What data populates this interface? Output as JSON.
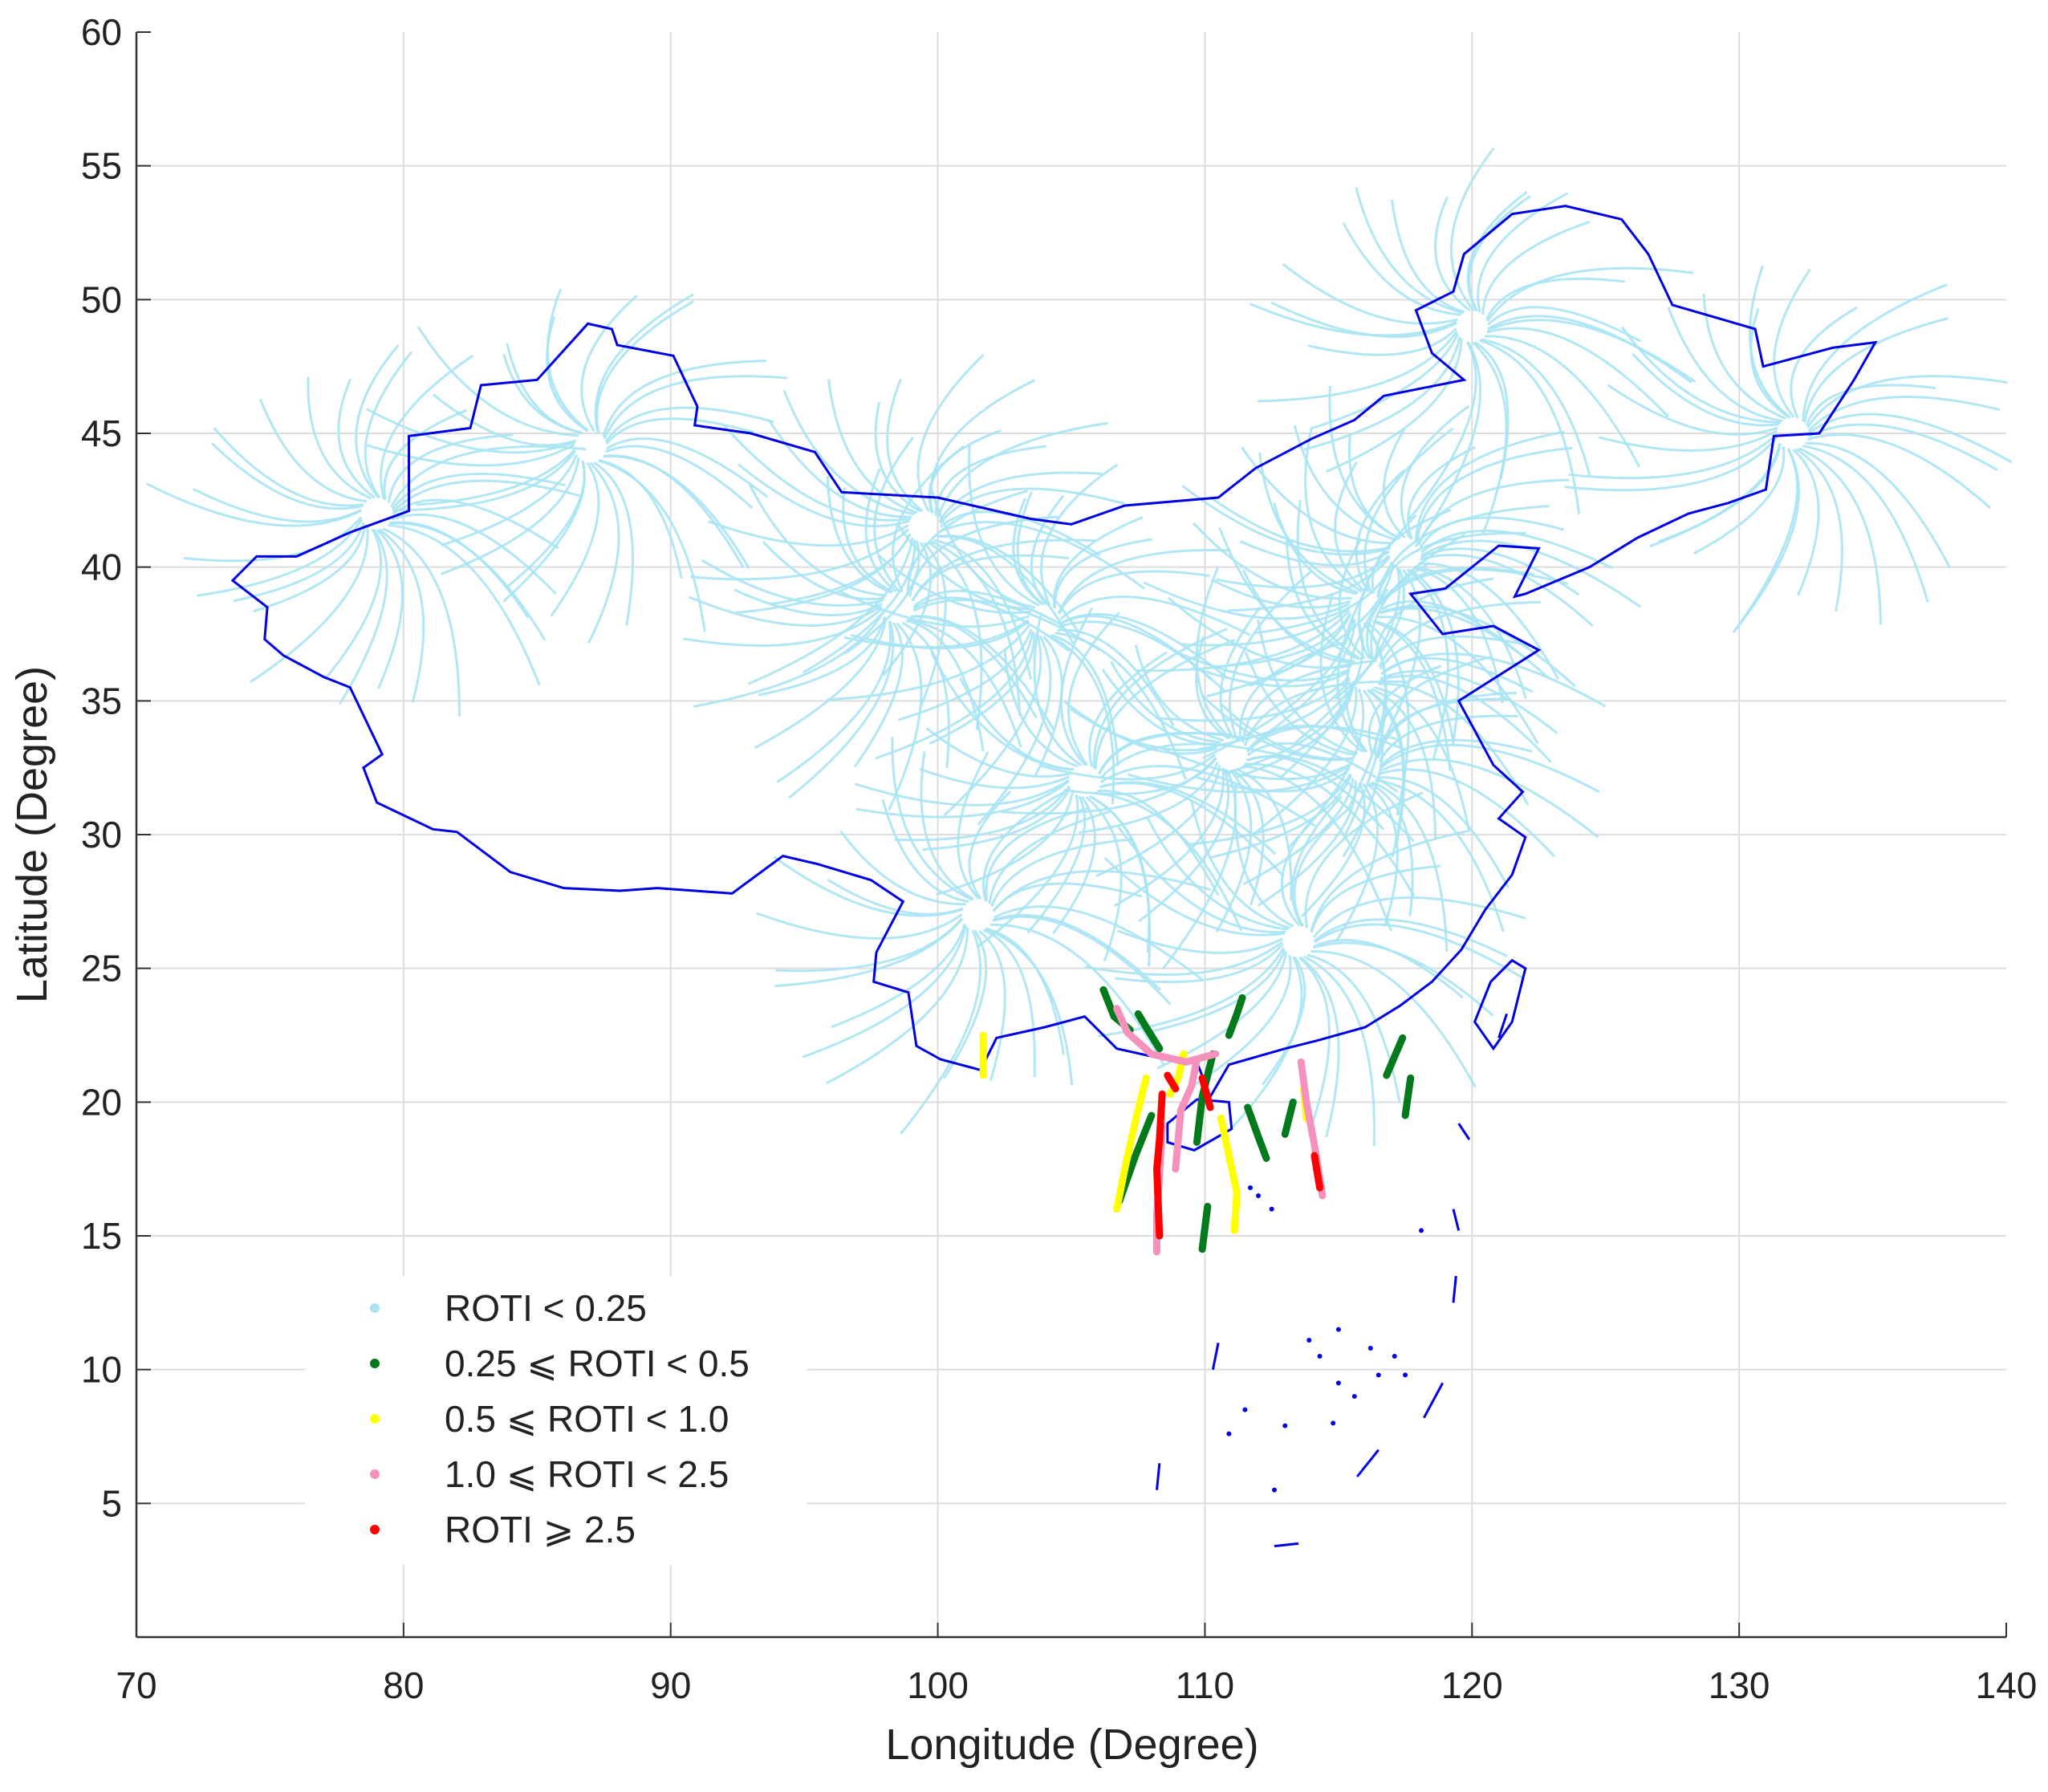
{
  "chart_data": {
    "type": "scatter",
    "title": "",
    "xlabel": "Longitude (Degree)",
    "ylabel": "Latitude (Degree)",
    "xlim": [
      70,
      140
    ],
    "ylim": [
      0,
      60
    ],
    "xticks": [
      "70",
      "80",
      "90",
      "100",
      "110",
      "120",
      "130",
      "140"
    ],
    "yticks": [
      "5",
      "10",
      "15",
      "20",
      "25",
      "30",
      "35",
      "40",
      "45",
      "50",
      "55",
      "60"
    ],
    "grid": true,
    "legend_position": "bottom-left",
    "boundary_color": "#0000e6",
    "series": [
      {
        "name": "ROTI < 0.25",
        "color": "#a8e4f4"
      },
      {
        "name": "0.25 ⩽ ROTI < 0.5",
        "color": "#007a1a"
      },
      {
        "name": "0.5 ⩽ ROTI < 1.0",
        "color": "#ffff00"
      },
      {
        "name": "1.0 ⩽ ROTI < 2.5",
        "color": "#f492bd"
      },
      {
        "name": "ROTI ⩾ 2.5",
        "color": "#ff0000"
      }
    ],
    "stations": [
      [
        79,
        42
      ],
      [
        87,
        44.5
      ],
      [
        99.5,
        41.5
      ],
      [
        98.5,
        38.5
      ],
      [
        104,
        38
      ],
      [
        111,
        33
      ],
      [
        116,
        38.5
      ],
      [
        116,
        36
      ],
      [
        117.5,
        40.5
      ],
      [
        116,
        32.5
      ],
      [
        105.5,
        32
      ],
      [
        101.5,
        27
      ],
      [
        113.5,
        26
      ],
      [
        120,
        49
      ],
      [
        132,
        45
      ]
    ],
    "disturbed_tracks": [
      {
        "level": 1,
        "points": [
          [
            106.2,
            24.2
          ],
          [
            106.6,
            23.2
          ],
          [
            107.2,
            22.7
          ]
        ]
      },
      {
        "level": 1,
        "points": [
          [
            107.5,
            23.3
          ],
          [
            107.8,
            22.8
          ],
          [
            108.3,
            22.0
          ]
        ]
      },
      {
        "level": 1,
        "points": [
          [
            110.3,
            21.8
          ],
          [
            109.9,
            20.2
          ],
          [
            109.7,
            18.5
          ]
        ]
      },
      {
        "level": 1,
        "points": [
          [
            111.6,
            19.8
          ],
          [
            112.0,
            18.7
          ],
          [
            112.3,
            17.9
          ]
        ]
      },
      {
        "level": 1,
        "points": [
          [
            117.4,
            22.4
          ],
          [
            117.1,
            21.7
          ],
          [
            116.8,
            21.0
          ]
        ]
      },
      {
        "level": 1,
        "points": [
          [
            117.7,
            20.9
          ],
          [
            117.5,
            19.5
          ]
        ]
      },
      {
        "level": 1,
        "points": [
          [
            111.4,
            23.9
          ],
          [
            111.2,
            23.3
          ],
          [
            110.9,
            22.5
          ]
        ]
      },
      {
        "level": 1,
        "points": [
          [
            110.1,
            16.1
          ],
          [
            109.9,
            14.5
          ]
        ]
      },
      {
        "level": 1,
        "points": [
          [
            108.0,
            19.5
          ],
          [
            107.4,
            18.0
          ],
          [
            106.8,
            16.3
          ]
        ]
      },
      {
        "level": 1,
        "points": [
          [
            113.3,
            20.0
          ],
          [
            113.0,
            18.8
          ]
        ]
      },
      {
        "level": 2,
        "points": [
          [
            107.8,
            20.9
          ],
          [
            107.4,
            19.3
          ],
          [
            107.0,
            17.5
          ],
          [
            106.7,
            16.0
          ]
        ]
      },
      {
        "level": 2,
        "points": [
          [
            110.6,
            19.4
          ],
          [
            110.9,
            18.0
          ],
          [
            111.2,
            16.6
          ],
          [
            111.1,
            15.2
          ]
        ]
      },
      {
        "level": 2,
        "points": [
          [
            109.2,
            21.8
          ],
          [
            109.0,
            20.9
          ],
          [
            108.7,
            20.3
          ]
        ]
      },
      {
        "level": 2,
        "points": [
          [
            113.7,
            20.5
          ],
          [
            113.8,
            19.4
          ]
        ]
      },
      {
        "level": 2,
        "points": [
          [
            101.7,
            22.5
          ],
          [
            101.7,
            21.0
          ]
        ]
      },
      {
        "level": 3,
        "points": [
          [
            106.7,
            23.5
          ],
          [
            107.1,
            22.6
          ],
          [
            108.0,
            21.8
          ],
          [
            109.3,
            21.5
          ],
          [
            110.4,
            21.8
          ]
        ]
      },
      {
        "level": 3,
        "points": [
          [
            113.6,
            21.5
          ],
          [
            113.8,
            20.0
          ],
          [
            114.1,
            18.4
          ],
          [
            114.4,
            16.5
          ]
        ]
      },
      {
        "level": 3,
        "points": [
          [
            108.4,
            19.1
          ],
          [
            108.3,
            17.3
          ],
          [
            108.2,
            15.8
          ],
          [
            108.2,
            14.4
          ]
        ]
      },
      {
        "level": 3,
        "points": [
          [
            109.7,
            21.6
          ],
          [
            109.5,
            20.6
          ],
          [
            109.1,
            19.7
          ],
          [
            108.9,
            17.5
          ]
        ]
      },
      {
        "level": 4,
        "points": [
          [
            108.4,
            20.3
          ],
          [
            108.3,
            18.6
          ],
          [
            108.2,
            17.5
          ],
          [
            108.3,
            15.0
          ]
        ]
      },
      {
        "level": 4,
        "points": [
          [
            109.9,
            20.9
          ],
          [
            110.2,
            19.8
          ]
        ]
      },
      {
        "level": 4,
        "points": [
          [
            114.1,
            18.0
          ],
          [
            114.3,
            16.8
          ]
        ]
      },
      {
        "level": 4,
        "points": [
          [
            108.6,
            21.0
          ],
          [
            108.9,
            20.5
          ]
        ]
      }
    ]
  }
}
